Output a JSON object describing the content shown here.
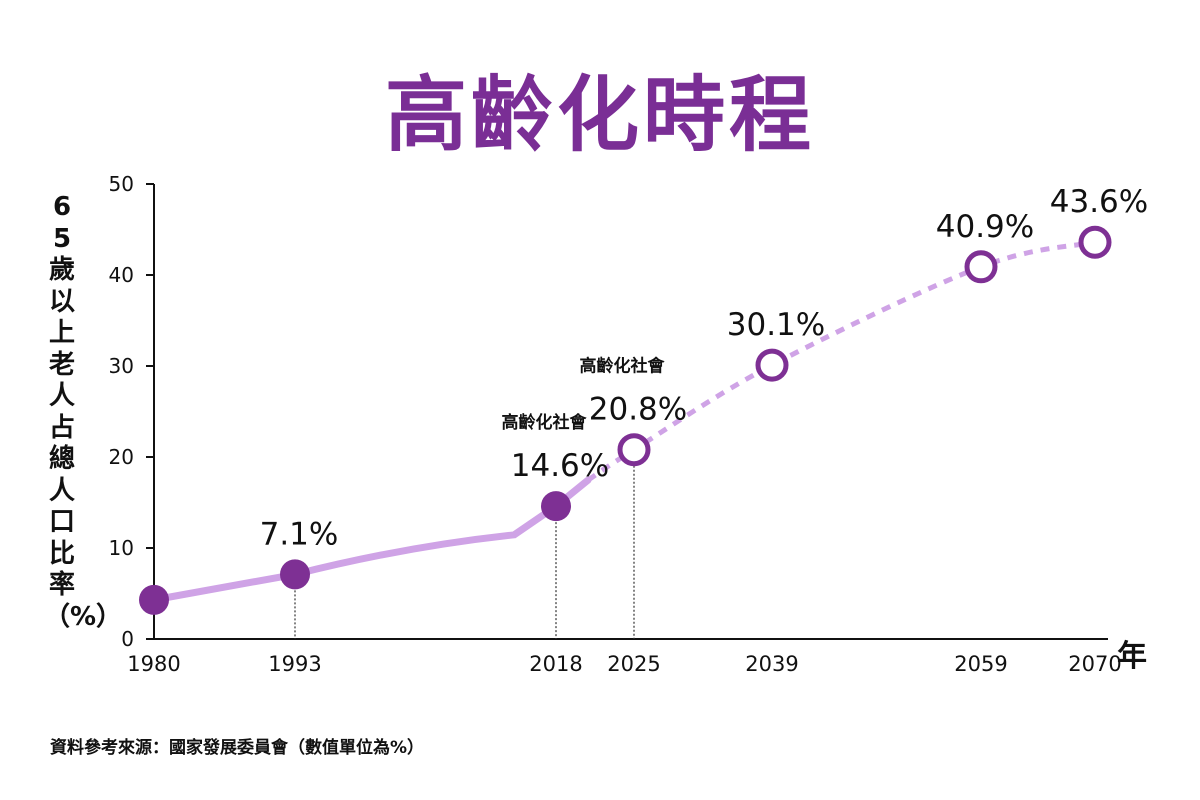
{
  "title": "高齡化時程",
  "source": "資料參考來源：國家發展委員會（數值單位為%）",
  "colors": {
    "title": "#7a2e95",
    "marker": "#7e3094",
    "line": "#cfa3e6",
    "text": "#111111"
  },
  "chart_data": {
    "type": "line",
    "title": "高齡化時程",
    "ylabel": "65歲以上老人占總人口比率（%）",
    "xlabel": "年",
    "ylim": [
      0,
      50
    ],
    "yticks": [
      "0",
      "10",
      "20",
      "30",
      "40",
      "50"
    ],
    "grid": false,
    "legend": "none",
    "points": [
      {
        "x": 1980,
        "y": 4.3,
        "label": "",
        "filled": true,
        "guide": false
      },
      {
        "x": 1993,
        "y": 7.1,
        "label": "7.1%",
        "filled": true,
        "guide": true
      },
      {
        "x": 2018,
        "y": 14.6,
        "label": "14.6%",
        "note": "高齡化社會",
        "filled": true,
        "guide": true
      },
      {
        "x": 2025,
        "y": 20.8,
        "label": "20.8%",
        "note": "高齡化社會",
        "filled": false,
        "guide": true
      },
      {
        "x": 2039,
        "y": 30.1,
        "label": "30.1%",
        "filled": false,
        "guide": false
      },
      {
        "x": 2059,
        "y": 40.9,
        "label": "40.9%",
        "filled": false,
        "guide": false
      },
      {
        "x": 2070,
        "y": 43.6,
        "label": "43.6%",
        "filled": false,
        "guide": false
      }
    ],
    "xticks": [
      "1980",
      "1993",
      "2018",
      "2025",
      "2039",
      "2059",
      "2070"
    ]
  }
}
